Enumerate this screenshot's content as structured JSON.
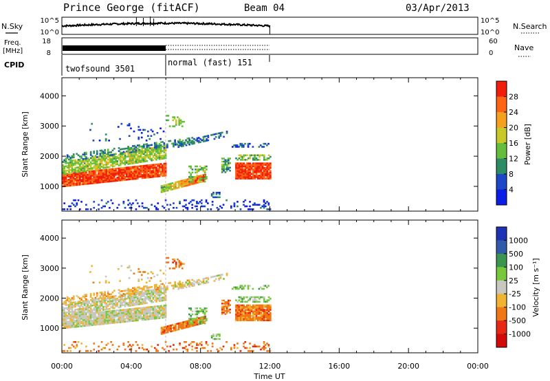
{
  "header": {
    "station": "Prince George (fitACF)",
    "beam": "Beam 04",
    "date": "03/Apr/2013"
  },
  "strips": {
    "nsky_label": "N.Sky",
    "nsky_ticks": [
      "10^5",
      "10^0"
    ],
    "nsearch_label": "N.Search",
    "nsearch_ticks": [
      "10^5",
      "10^0"
    ],
    "freq_label": "Freq.",
    "freq_unit": "[MHz]",
    "freq_ticks": [
      "18",
      "8"
    ],
    "nave_label": "Nave",
    "nave_ticks": [
      "60",
      "0"
    ],
    "cpid_label": "CPID",
    "cpid_segments": [
      "twofsound 3501",
      "normal (fast) 151"
    ]
  },
  "colors": {
    "power": [
      "#0a1ee6",
      "#1e46c8",
      "#2d8c64",
      "#64be3c",
      "#c8c828",
      "#f5a01e",
      "#ff6414",
      "#f01e0a"
    ],
    "velocity": [
      "#1e32b4",
      "#325aaa",
      "#3c9650",
      "#78c83c",
      "#c8c8c0",
      "#f0b432",
      "#f07814",
      "#e62814",
      "#d20a0a"
    ]
  },
  "chart_data": [
    {
      "type": "heatmap",
      "panel": "power",
      "ylabel": "Slant Range [km]",
      "xlabel": "Time UT",
      "xlim": [
        0,
        24
      ],
      "ylim": [
        180,
        4600
      ],
      "yticks": [
        "1000",
        "2000",
        "3000",
        "4000"
      ],
      "xticks": [
        "00:00",
        "04:00",
        "08:00",
        "12:00",
        "16:00",
        "20:00",
        "00:00"
      ],
      "colorbar_label": "Power [dB]",
      "colorbar_ticks": [
        "4",
        "8",
        "12",
        "16",
        "20",
        "24",
        "28"
      ],
      "clim": [
        0,
        32
      ]
    },
    {
      "type": "heatmap",
      "panel": "velocity",
      "ylabel": "Slant Range [km]",
      "xlabel": "Time UT",
      "xlim": [
        0,
        24
      ],
      "ylim": [
        180,
        4600
      ],
      "yticks": [
        "1000",
        "2000",
        "3000",
        "4000"
      ],
      "xticks": [
        "00:00",
        "04:00",
        "08:00",
        "12:00",
        "16:00",
        "20:00",
        "00:00"
      ],
      "colorbar_label": "Velocity [m s⁻¹]",
      "colorbar_ticks": [
        "1000",
        "500",
        "100",
        "25",
        "-25",
        "-100",
        "-500",
        "-1000"
      ]
    }
  ]
}
